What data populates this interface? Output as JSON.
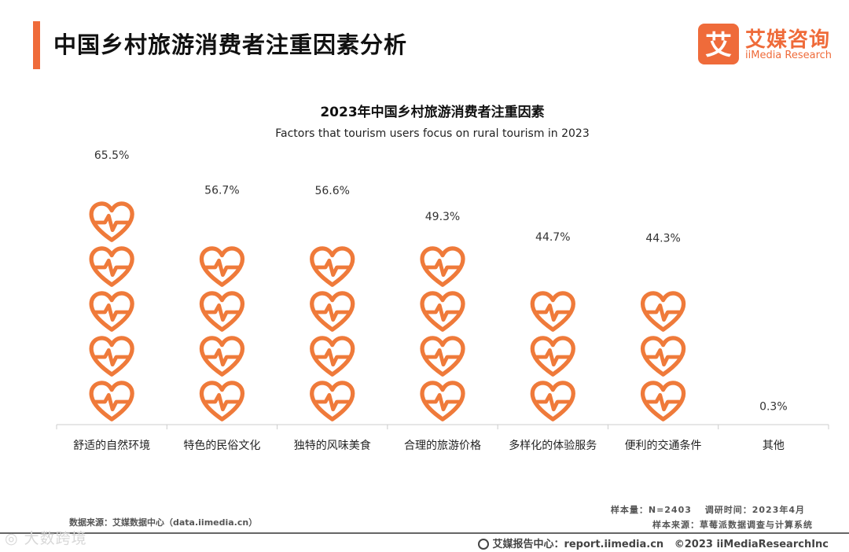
{
  "header": {
    "title": "中国乡村旅游消费者注重因素分析",
    "logo_cn": "艾媒咨询",
    "logo_en": "iiMedia Research",
    "logo_glyph": "艾"
  },
  "colors": {
    "accent": "#ef6b3a",
    "icon": "#ef7a3a",
    "axis": "#cccccc"
  },
  "icon": "heart-pulse-icon",
  "chart_data": {
    "type": "bar",
    "title": "2023年中国乡村旅游消费者注重因素",
    "subtitle": "Factors that tourism users focus on rural tourism in 2023",
    "categories": [
      "舒适的自然环境",
      "特色的民俗文化",
      "独特的风味美食",
      "合理的旅游价格",
      "多样化的体验服务",
      "便利的交通条件",
      "其他"
    ],
    "values": [
      65.5,
      56.7,
      56.6,
      49.3,
      44.7,
      44.3,
      0.3
    ],
    "value_labels": [
      "65.5%",
      "56.7%",
      "56.6%",
      "49.3%",
      "44.7%",
      "44.3%",
      "0.3%"
    ],
    "unit": "%",
    "value_per_icon": 11.5,
    "ylim": [
      0,
      69
    ],
    "grid": false,
    "legend": "none"
  },
  "footer": {
    "source": "数据来源：艾媒数据中心（data.iimedia.cn）",
    "sample_size": "样本量：N=2403　 调研时间：2023年4月",
    "sample_source": "样本来源：草莓派数据调查与计算系统",
    "report_center": "艾媒报告中心：report.iimedia.cn",
    "copyright": "©2023 iiMediaResearchInc"
  },
  "watermark": "◎ 大数跨境"
}
